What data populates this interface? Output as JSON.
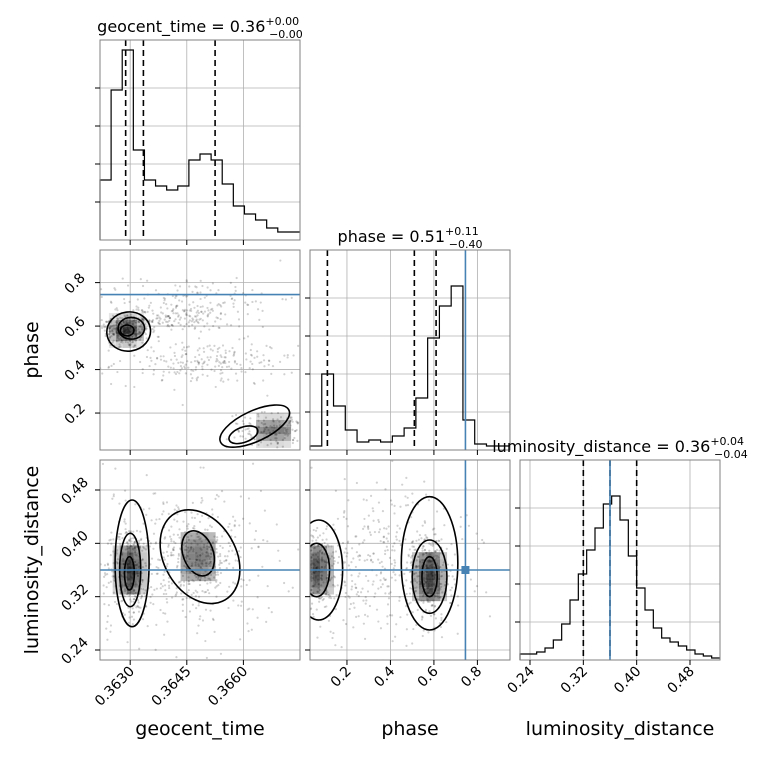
{
  "chart_data": {
    "type": "corner",
    "parameters": [
      "geocent_time",
      "phase",
      "luminosity_distance"
    ],
    "titles": {
      "geocent_time": {
        "label": "geocent_time = ",
        "value": "0.36",
        "sup": "+0.00",
        "sub": "−0.00"
      },
      "phase": {
        "label": "phase = ",
        "value": "0.51",
        "sup": "+0.11",
        "sub": "−0.40"
      },
      "luminosity_distance": {
        "label": "luminosity_distance = ",
        "value": "0.36",
        "sup": "+0.04",
        "sub": "−0.04"
      }
    },
    "axes_labels": {
      "geocent_time": "geocent_time",
      "phase": "phase",
      "luminosity_distance": "luminosity_distance"
    },
    "ranges": {
      "geocent_time": [
        0.3622,
        0.3675
      ],
      "phase": [
        0.03,
        0.95
      ],
      "luminosity_distance": [
        0.225,
        0.525
      ]
    },
    "ticks": {
      "geocent_time": [
        0.363,
        0.3645,
        0.366
      ],
      "phase": [
        0.2,
        0.4,
        0.6,
        0.8
      ],
      "luminosity_distance": [
        0.24,
        0.32,
        0.4,
        0.48
      ]
    },
    "tick_labels": {
      "geocent_time": [
        "0.3630",
        "0.3645",
        "0.3660"
      ],
      "phase": [
        "0.2",
        "0.4",
        "0.6",
        "0.8"
      ],
      "luminosity_distance": [
        "0.24",
        "0.32",
        "0.40",
        "0.48"
      ]
    },
    "truths": {
      "geocent_time": null,
      "phase": 0.745,
      "luminosity_distance": 0.36
    },
    "truth_color": "#4682b4",
    "quantiles": {
      "geocent_time": [
        0.36288,
        0.36335,
        0.36525
      ],
      "phase": [
        0.11,
        0.51,
        0.61
      ],
      "luminosity_distance": [
        0.32,
        0.36,
        0.4
      ]
    },
    "histograms": {
      "geocent_time": [
        0.3,
        0.75,
        0.95,
        0.45,
        0.3,
        0.27,
        0.25,
        0.27,
        0.4,
        0.43,
        0.4,
        0.28,
        0.17,
        0.13,
        0.1,
        0.06,
        0.04,
        0.04
      ],
      "phase": [
        0.02,
        0.38,
        0.22,
        0.1,
        0.04,
        0.05,
        0.04,
        0.07,
        0.11,
        0.26,
        0.56,
        0.72,
        0.82,
        0.15,
        0.03,
        0.02,
        0.02
      ],
      "luminosity_distance": [
        0.03,
        0.03,
        0.04,
        0.06,
        0.1,
        0.18,
        0.3,
        0.43,
        0.55,
        0.66,
        0.78,
        0.82,
        0.7,
        0.52,
        0.36,
        0.25,
        0.16,
        0.11,
        0.09,
        0.07,
        0.05,
        0.03,
        0.02,
        0.01
      ]
    },
    "grid": true,
    "legend": "none"
  }
}
